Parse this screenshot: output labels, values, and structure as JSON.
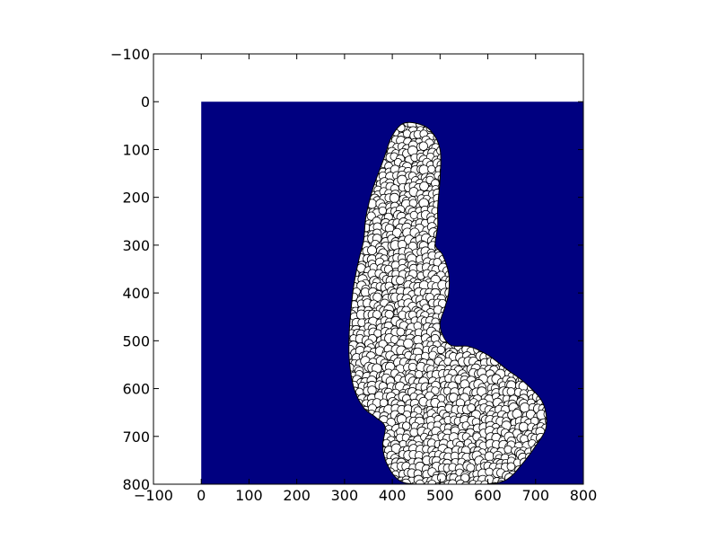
{
  "chart_data": {
    "type": "scatter",
    "title": "",
    "xlabel": "",
    "ylabel": "",
    "xlim": [
      -100,
      800
    ],
    "ylim": [
      800,
      -100
    ],
    "y_inverted": true,
    "grid": false,
    "background_image": {
      "extent_x": [
        0,
        800
      ],
      "extent_y": [
        0,
        800
      ],
      "color": "#000080"
    },
    "x_ticks": [
      -100,
      0,
      100,
      200,
      300,
      400,
      500,
      600,
      700,
      800
    ],
    "y_ticks": [
      -100,
      0,
      100,
      200,
      300,
      400,
      500,
      600,
      700,
      800
    ],
    "x_tick_labels": [
      "−100",
      "0",
      "100",
      "200",
      "300",
      "400",
      "500",
      "600",
      "700",
      "800"
    ],
    "y_tick_labels": [
      "−100",
      "0",
      "100",
      "200",
      "300",
      "400",
      "500",
      "600",
      "700",
      "800"
    ],
    "markers": {
      "shape": "circle",
      "face_color": "#ffffff",
      "edge_color": "#000000",
      "region_outline": [
        [
          382,
          120
        ],
        [
          398,
          75
        ],
        [
          420,
          47
        ],
        [
          450,
          45
        ],
        [
          480,
          60
        ],
        [
          500,
          100
        ],
        [
          500,
          160
        ],
        [
          495,
          220
        ],
        [
          495,
          260
        ],
        [
          490,
          300
        ],
        [
          505,
          320
        ],
        [
          518,
          360
        ],
        [
          518,
          400
        ],
        [
          510,
          430
        ],
        [
          500,
          470
        ],
        [
          520,
          508
        ],
        [
          560,
          512
        ],
        [
          600,
          530
        ],
        [
          640,
          560
        ],
        [
          680,
          590
        ],
        [
          715,
          630
        ],
        [
          722,
          680
        ],
        [
          700,
          720
        ],
        [
          670,
          760
        ],
        [
          640,
          790
        ],
        [
          600,
          800
        ],
        [
          540,
          800
        ],
        [
          480,
          800
        ],
        [
          420,
          795
        ],
        [
          390,
          760
        ],
        [
          380,
          720
        ],
        [
          385,
          680
        ],
        [
          365,
          660
        ],
        [
          340,
          640
        ],
        [
          320,
          600
        ],
        [
          310,
          540
        ],
        [
          310,
          480
        ],
        [
          315,
          420
        ],
        [
          320,
          380
        ],
        [
          330,
          330
        ],
        [
          340,
          290
        ],
        [
          345,
          240
        ],
        [
          360,
          180
        ]
      ]
    }
  }
}
